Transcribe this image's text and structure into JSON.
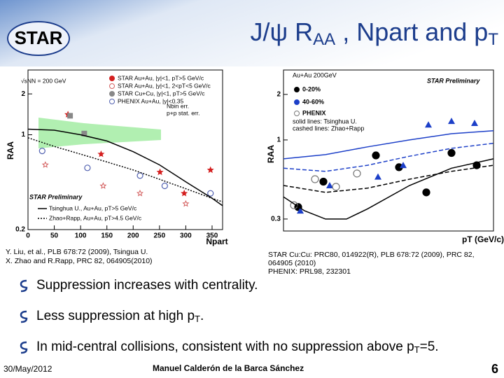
{
  "header": {
    "logo": "STAR",
    "title": [
      "J/ψ R",
      "AA",
      " , Npart and p",
      "T"
    ]
  },
  "chart_data": [
    {
      "type": "scatter",
      "ylog": true,
      "xlim": [
        0,
        370
      ],
      "xticks": [
        0,
        50,
        100,
        150,
        200,
        250,
        300,
        350
      ],
      "ylim": [
        0.2,
        3
      ],
      "yticks": [
        0.2,
        1,
        2
      ],
      "ylabel": "RAA",
      "xlabel": "Npart",
      "annotations": [
        "√sNN = 200 GeV",
        "Nbin err.",
        "p+p stat. err.",
        "STAR Preliminary"
      ],
      "series": [
        {
          "name": "STAR Au+Au, |y|<1, pT>5 GeV/c",
          "marker": "star",
          "color": "#d42020",
          "x": [
            76,
            139,
            251,
            297,
            347
          ],
          "values": [
            1.41,
            0.72,
            0.53,
            0.37,
            0.55
          ]
        },
        {
          "name": "STAR Au+Au, |y|<1, 2<pT<5 GeV/c",
          "marker": "openstar",
          "color": "#d46060",
          "x": [
            33,
            143,
            213,
            300
          ],
          "values": [
            0.6,
            0.42,
            0.37,
            0.31
          ]
        },
        {
          "name": "STAR Cu+Cu, |y|<1, pT>5 GeV/c",
          "marker": "square",
          "color": "#888888",
          "x": [
            80,
            107
          ],
          "values": [
            1.38,
            1.02
          ]
        },
        {
          "name": "PHENIX Au+Au, |y|<0.35",
          "marker": "opencircle",
          "color": "#5060b0",
          "x": [
            27,
            113,
            213,
            260,
            347
          ],
          "values": [
            0.76,
            0.57,
            0.5,
            0.42,
            0.37
          ]
        },
        {
          "name": "Tsinghua U., Au+Au, pT>5 GeV/c",
          "marker": "solid",
          "color": "#000000",
          "x": [
            0,
            50,
            100,
            150,
            200,
            250,
            300,
            350,
            370
          ],
          "values": [
            1.1,
            1.08,
            1.0,
            0.9,
            0.75,
            0.6,
            0.45,
            0.34,
            0.3
          ]
        },
        {
          "name": "Zhao+Rapp, Au+Au, pT>4.5 GeV/c",
          "marker": "dotted",
          "color": "#000000",
          "x": [
            0,
            50,
            100,
            150,
            200,
            250,
            300,
            350,
            370
          ],
          "values": [
            0.95,
            0.82,
            0.72,
            0.63,
            0.55,
            0.47,
            0.4,
            0.34,
            0.32
          ]
        }
      ]
    },
    {
      "type": "scatter",
      "ylog": true,
      "xlim": [
        0,
        10
      ],
      "ylim": [
        0.25,
        2.9
      ],
      "yticks": [
        0.3,
        1,
        2
      ],
      "ylabel": "RAA",
      "xlabel": "pT (GeV/c)",
      "annotations": [
        "Au+Au 200GeV",
        "solid lines: Tsinghua U.",
        "cashed lines: Zhao+Rapp",
        "STAR Preliminary"
      ],
      "series": [
        {
          "name": "0-20%",
          "marker": "circle",
          "color": "#000000",
          "x": [
            0.7,
            1.9,
            4.4,
            5.5,
            6.8,
            8.0,
            9.2
          ],
          "values": [
            0.36,
            0.53,
            0.79,
            0.66,
            0.45,
            0.82,
            0.68
          ]
        },
        {
          "name": "40-60%",
          "marker": "triangle",
          "color": "#1c3fc8",
          "x": [
            0.8,
            2.2,
            4.5,
            5.7,
            6.9,
            8.0,
            9.1
          ],
          "values": [
            0.34,
            0.5,
            0.57,
            0.68,
            1.26,
            1.33,
            1.29
          ]
        },
        {
          "name": "PHENIX",
          "marker": "opencircle",
          "color": "#777777",
          "x": [
            0.5,
            1.5,
            2.5,
            3.5
          ],
          "values": [
            0.37,
            0.55,
            0.49,
            0.6
          ]
        },
        {
          "marker": "solid",
          "color": "#1c3fc8",
          "x": [
            0,
            2,
            4,
            6,
            8,
            10
          ],
          "values": [
            0.75,
            0.8,
            0.9,
            1.0,
            1.1,
            1.15
          ]
        },
        {
          "marker": "solid",
          "color": "#000000",
          "x": [
            0,
            1,
            2,
            3,
            4,
            6,
            8,
            10
          ],
          "values": [
            0.42,
            0.34,
            0.3,
            0.3,
            0.35,
            0.5,
            0.65,
            0.75
          ]
        },
        {
          "marker": "dashed",
          "color": "#1c3fc8",
          "x": [
            0,
            2,
            4,
            6,
            8,
            10
          ],
          "values": [
            0.65,
            0.62,
            0.68,
            0.78,
            0.88,
            0.95
          ]
        },
        {
          "marker": "dashed",
          "color": "#000000",
          "x": [
            0,
            2,
            4,
            6,
            8,
            10
          ],
          "values": [
            0.5,
            0.45,
            0.48,
            0.55,
            0.62,
            0.68
          ]
        }
      ]
    }
  ],
  "captions": [
    [
      "Y. Liu, et al., PLB 678:72 (2009), Tsingua U.",
      "X. Zhao and R.Rapp, PRC 82, 064905(2010)"
    ],
    [
      "STAR Cu:Cu: PRC80, 014922(R), PLB 678:72 (2009), PRC 82,",
      "064905 (2010)",
      "PHENIX: PRL98, 232301"
    ]
  ],
  "bullets": [
    [
      "Suppression increases with centrality."
    ],
    [
      "Less suppression at high p",
      "T",
      "."
    ],
    [
      "In mid-central collisions, consistent with no suppression above p",
      "T",
      "=5."
    ]
  ],
  "footer": {
    "date": "30/May/2012",
    "author": "Manuel Calderón de la Barca Sánchez",
    "page": "6"
  }
}
